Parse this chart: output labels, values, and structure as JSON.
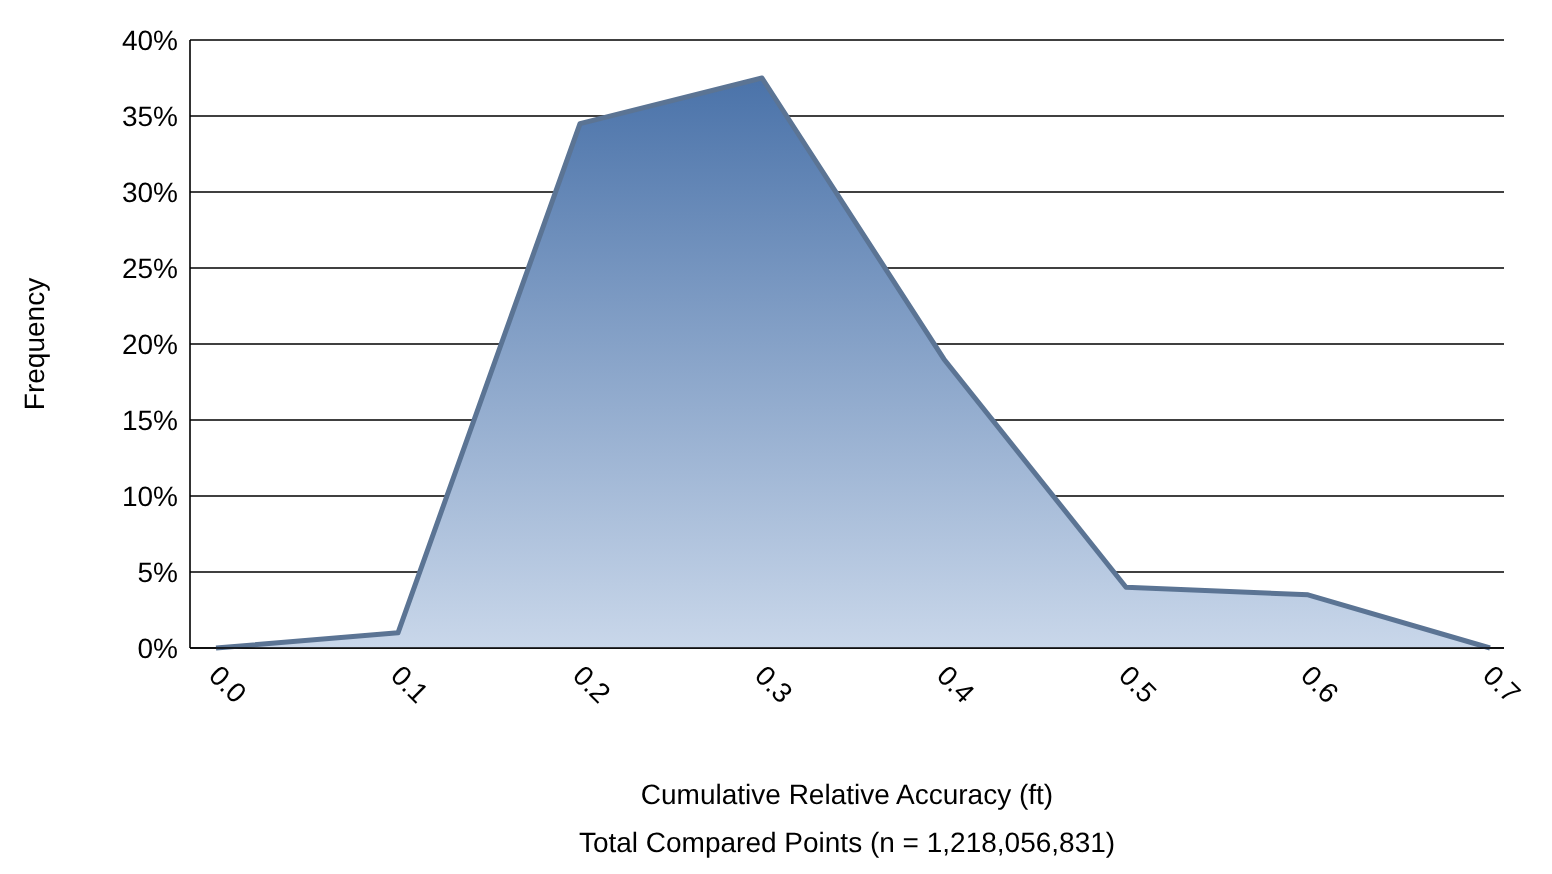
{
  "chart_data": {
    "type": "area",
    "categories": [
      "0.0",
      "0.1",
      "0.2",
      "0.3",
      "0.4",
      "0.5",
      "0.6",
      "0.7"
    ],
    "series": [
      {
        "color": "#4a78b8",
        "values": [
          0,
          1,
          34.5,
          37.5,
          19,
          4,
          3.5,
          0
        ]
      }
    ],
    "ylabel": "Frequency",
    "xlabel": "Cumulative Relative Accuracy (ft)",
    "annotations": [
      "Total Compared Points (n = 1,218,056,831)"
    ],
    "ylim": [
      0,
      40
    ],
    "yticks": [
      {
        "value": 0,
        "label": "0%"
      },
      {
        "value": 5,
        "label": "5%"
      },
      {
        "value": 10,
        "label": "10%"
      },
      {
        "value": 15,
        "label": "15%"
      },
      {
        "value": 20,
        "label": "20%"
      },
      {
        "value": 25,
        "label": "25%"
      },
      {
        "value": 30,
        "label": "30%"
      },
      {
        "value": 35,
        "label": "35%"
      },
      {
        "value": 40,
        "label": "40%"
      }
    ],
    "grid": "y"
  }
}
